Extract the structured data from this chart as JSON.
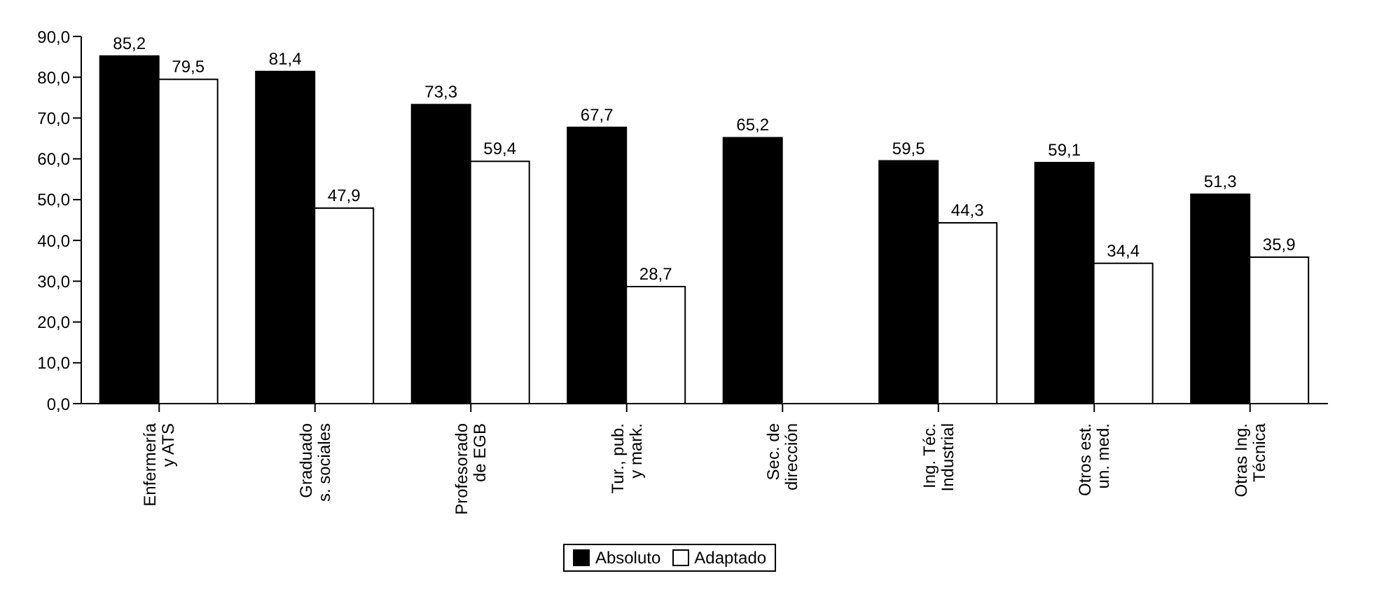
{
  "chart_data": {
    "type": "bar",
    "categories": [
      "Enfermería\ny ATS",
      "Graduado\ns. sociales",
      "Profesorado\nde EGB",
      "Tur., pub.\ny mark.",
      "Sec. de\ndirección",
      "Ing. Téc.\nIndustrial",
      "Otros est.\nun. med.",
      "Otras Ing.\nTécnica"
    ],
    "series": [
      {
        "name": "Absoluto",
        "color": "#000000",
        "values": [
          85.2,
          81.4,
          73.3,
          67.7,
          65.2,
          59.5,
          59.1,
          51.3
        ],
        "value_labels": [
          "85,2",
          "81,4",
          "73,3",
          "67,7",
          "65,2",
          "59,5",
          "59,1",
          "51,3"
        ]
      },
      {
        "name": "Adaptado",
        "color": "#ffffff",
        "values": [
          79.5,
          47.9,
          59.4,
          28.7,
          null,
          44.3,
          34.4,
          35.9
        ],
        "value_labels": [
          "79,5",
          "47,9",
          "59,4",
          "28,7",
          null,
          "44,3",
          "34,4",
          "35,9"
        ]
      }
    ],
    "ylim": [
      0,
      90
    ],
    "yticks": [
      {
        "value": 0,
        "label": "0,0"
      },
      {
        "value": 10,
        "label": "10,0"
      },
      {
        "value": 20,
        "label": "20,0"
      },
      {
        "value": 30,
        "label": "30,0"
      },
      {
        "value": 40,
        "label": "40,0"
      },
      {
        "value": 50,
        "label": "50,0"
      },
      {
        "value": 60,
        "label": "60,0"
      },
      {
        "value": 70,
        "label": "70,0"
      },
      {
        "value": 80,
        "label": "80,0"
      },
      {
        "value": 90,
        "label": "90,0"
      }
    ],
    "grid": false,
    "legend": "bottom"
  }
}
